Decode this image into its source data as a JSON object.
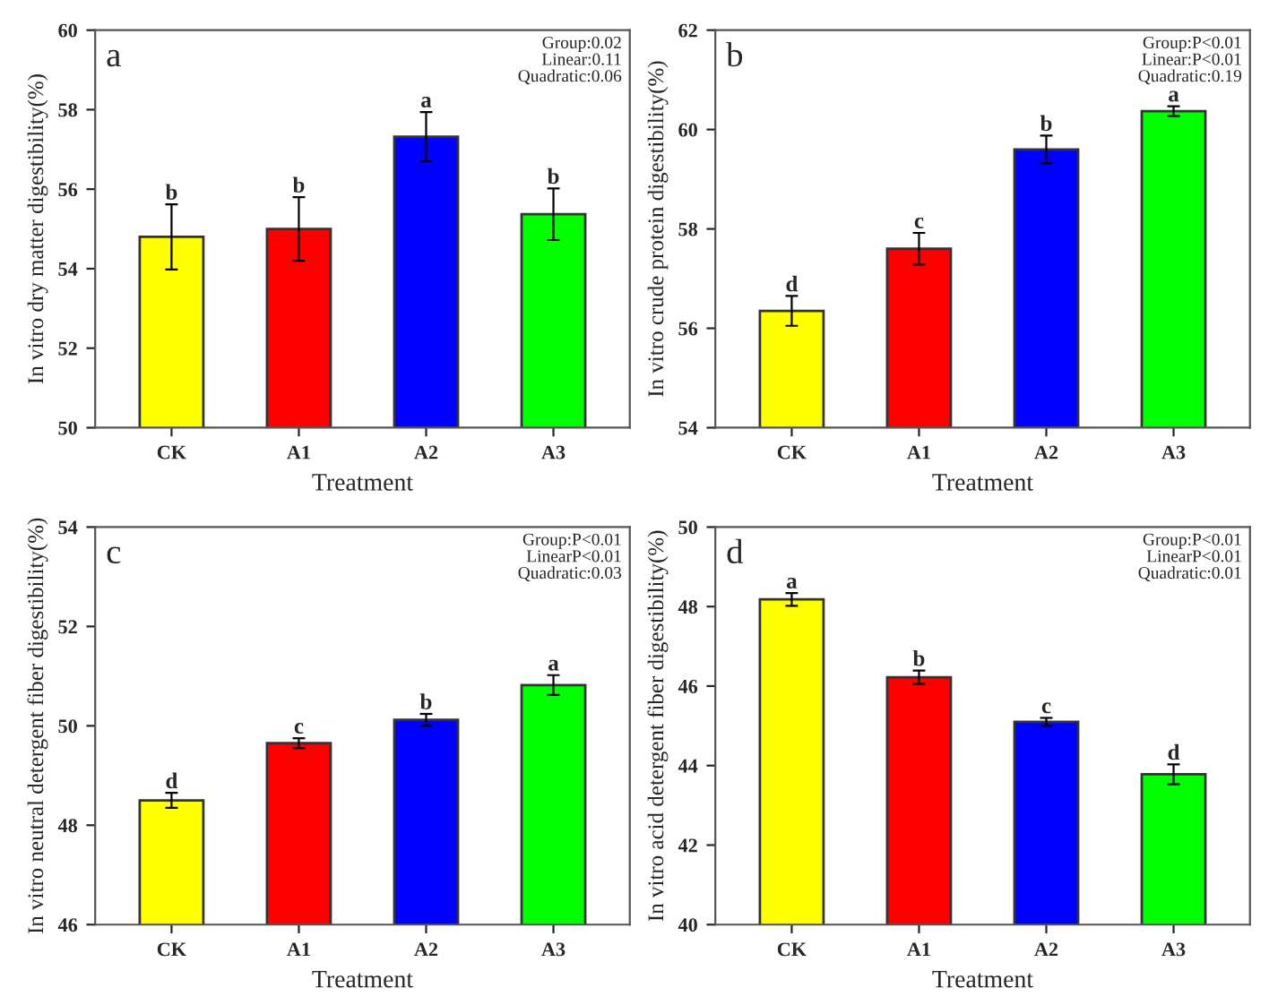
{
  "chart_data": [
    {
      "type": "bar",
      "categories": [
        "CK",
        "A1",
        "A2",
        "A3"
      ],
      "values": [
        54.8,
        55.0,
        57.32,
        55.37
      ],
      "errors": [
        0.82,
        0.8,
        0.62,
        0.65
      ],
      "colors": [
        "#ffff00",
        "#ff0000",
        "#0000ff",
        "#00ff00"
      ],
      "value_labels": [
        "b",
        "b",
        "a",
        "b"
      ],
      "xlabel": "Treatment",
      "ylabel": "In vitro dry matter digestibility(%)",
      "ylim": [
        50,
        60
      ],
      "yticks": [
        50,
        52,
        54,
        56,
        58,
        60
      ],
      "annotations": [
        "a",
        "Group:0.02",
        "Linear:0.11",
        "Quadratic:0.06"
      ],
      "grid": false
    },
    {
      "type": "bar",
      "categories": [
        "CK",
        "A1",
        "A2",
        "A3"
      ],
      "values": [
        56.35,
        57.6,
        59.6,
        60.37
      ],
      "errors": [
        0.3,
        0.32,
        0.28,
        0.1
      ],
      "colors": [
        "#ffff00",
        "#ff0000",
        "#0000ff",
        "#00ff00"
      ],
      "value_labels": [
        "d",
        "c",
        "b",
        "a"
      ],
      "xlabel": "Treatment",
      "ylabel": "In vitro crude protein digestibility(%)",
      "ylim": [
        54,
        62
      ],
      "yticks": [
        54,
        56,
        58,
        60,
        62
      ],
      "annotations": [
        "b",
        "Group:P<0.01",
        "Linear:P<0.01",
        "Quadratic:0.19"
      ],
      "grid": false
    },
    {
      "type": "bar",
      "categories": [
        "CK",
        "A1",
        "A2",
        "A3"
      ],
      "values": [
        48.5,
        49.65,
        50.12,
        50.82
      ],
      "errors": [
        0.15,
        0.1,
        0.12,
        0.2
      ],
      "colors": [
        "#ffff00",
        "#ff0000",
        "#0000ff",
        "#00ff00"
      ],
      "value_labels": [
        "d",
        "c",
        "b",
        "a"
      ],
      "xlabel": "Treatment",
      "ylabel": "In vitro neutral detergent fiber digestibility(%)",
      "ylim": [
        46,
        54
      ],
      "yticks": [
        46,
        48,
        50,
        52,
        54
      ],
      "annotations": [
        "c",
        "Group:P<0.01",
        "LinearP<0.01",
        "Quadratic:0.03"
      ],
      "grid": false
    },
    {
      "type": "bar",
      "categories": [
        "CK",
        "A1",
        "A2",
        "A3"
      ],
      "values": [
        48.18,
        46.22,
        45.1,
        43.78
      ],
      "errors": [
        0.16,
        0.17,
        0.1,
        0.25
      ],
      "colors": [
        "#ffff00",
        "#ff0000",
        "#0000ff",
        "#00ff00"
      ],
      "value_labels": [
        "a",
        "b",
        "c",
        "d"
      ],
      "xlabel": "Treatment",
      "ylabel": "In vitro acid detergent fiber digestibility(%)",
      "ylim": [
        40,
        50
      ],
      "yticks": [
        40,
        42,
        44,
        46,
        48,
        50
      ],
      "annotations": [
        "d",
        "Group:P<0.01",
        "LinearP<0.01",
        "Quadratic:0.01"
      ],
      "grid": false
    }
  ]
}
